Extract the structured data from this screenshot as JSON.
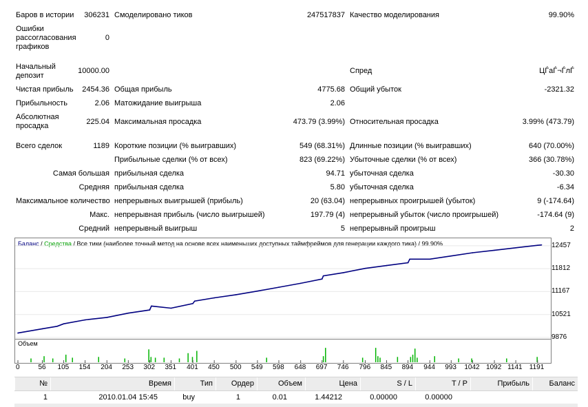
{
  "report": {
    "bars_label": "Баров в истории",
    "bars_value": "306231",
    "ticks_label": "Смоделировано тиков",
    "ticks_value": "247517837",
    "quality_label": "Качество моделирования",
    "quality_value": "99.90%",
    "errors_label": "Ошибки рассогласования графиков",
    "errors_value": "0",
    "deposit_label": "Начальный депозит",
    "deposit_value": "10000.00",
    "spread_label": "Спред",
    "spread_value": "ЦЃаЃ¬ЃлЃ",
    "net_label": "Чистая прибыль",
    "net_value": "2454.36",
    "gross_profit_label": "Общая прибыль",
    "gross_profit_value": "4775.68",
    "gross_loss_label": "Общий убыток",
    "gross_loss_value": "-2321.32",
    "pf_label": "Прибыльность",
    "pf_value": "2.06",
    "payoff_label": "Матожидание выигрыша",
    "payoff_value": "2.06",
    "abs_dd_label": "Абсолютная просадка",
    "abs_dd_value": "225.04",
    "max_dd_label": "Максимальная просадка",
    "max_dd_value": "473.79 (3.99%)",
    "rel_dd_label": "Относительная просадка",
    "rel_dd_value": "3.99% (473.79)",
    "total_label": "Всего сделок",
    "total_value": "1189",
    "short_label": "Короткие позиции (% выигравших)",
    "short_value": "549 (68.31%)",
    "long_label": "Длинные позиции (% выигравших)",
    "long_value": "640 (70.00%)",
    "profit_trades_label": "Прибыльные сделки (% от всех)",
    "profit_trades_value": "823 (69.22%)",
    "loss_trades_label": "Убыточные сделки (% от всех)",
    "loss_trades_value": "366 (30.78%)",
    "largest_label": "Самая большая",
    "largest_profit_label": "прибыльная сделка",
    "largest_profit_value": "94.71",
    "largest_loss_label": "убыточная сделка",
    "largest_loss_value": "-30.30",
    "average_label": "Средняя",
    "avg_profit_label": "прибыльная сделка",
    "avg_profit_value": "5.80",
    "avg_loss_label": "убыточная сделка",
    "avg_loss_value": "-6.34",
    "maxnum_label": "Максимальное количество",
    "maxnum_wins_label": "непрерывных выигрышей (прибыль)",
    "maxnum_wins_value": "20 (63.04)",
    "maxnum_losses_label": "непрерывных проигрышей (убыток)",
    "maxnum_losses_value": "9 (-174.64)",
    "maxamt_label": "Макс.",
    "maxamt_profit_label": "непрерывная прибыль (число выигрышей)",
    "maxamt_profit_value": "197.79 (4)",
    "maxamt_loss_label": "непрерывный убыток (число проигрышей)",
    "maxamt_loss_value": "-174.64 (9)",
    "avgcons_label": "Средний",
    "avgcons_wins_label": "непрерывный выигрыш",
    "avgcons_wins_value": "5",
    "avgcons_losses_label": "непрерывный проигрыш",
    "avgcons_losses_value": "2"
  },
  "chart": {
    "legend_balance": "Баланс",
    "legend_sep": " / ",
    "legend_equity": "Средства",
    "legend_rest": " / Все тики (наиболее точный метод на основе всех наименьших доступных таймфреймов для генерации каждого тика) / 99.90%",
    "volume_label": "Объем",
    "colors": {
      "balance": "#000080",
      "equity": "#00a000",
      "volume": "#00b400"
    }
  },
  "chart_data": {
    "type": "line",
    "xlabel": "",
    "ylabel": "",
    "y_ticks": [
      12457,
      11812,
      11167,
      10521,
      9876
    ],
    "x_ticks": [
      0,
      56,
      105,
      154,
      204,
      253,
      302,
      351,
      401,
      450,
      500,
      549,
      598,
      648,
      697,
      746,
      796,
      845,
      894,
      944,
      993,
      1042,
      1092,
      1141,
      1191
    ],
    "ylim": [
      9876,
      12590
    ],
    "xlim": [
      0,
      1215
    ],
    "series": [
      {
        "name": "Баланс",
        "x": [
          0,
          56,
          90,
          105,
          154,
          204,
          253,
          302,
          306,
          351,
          401,
          405,
          450,
          500,
          549,
          598,
          648,
          697,
          700,
          746,
          796,
          845,
          894,
          898,
          944,
          993,
          1042,
          1092,
          1141,
          1191,
          1200
        ],
        "values": [
          10000,
          10120,
          10190,
          10260,
          10370,
          10440,
          10560,
          10650,
          10760,
          10700,
          10830,
          10900,
          10990,
          11080,
          11180,
          11290,
          11400,
          11520,
          11610,
          11700,
          11820,
          11900,
          11980,
          12080,
          12080,
          12170,
          12260,
          12330,
          12400,
          12470,
          12480
        ]
      }
    ],
    "volume": {
      "name": "Объем",
      "x": [
        30,
        60,
        80,
        110,
        125,
        185,
        245,
        300,
        305,
        315,
        335,
        370,
        390,
        400,
        410,
        570,
        700,
        705,
        790,
        820,
        825,
        830,
        870,
        900,
        905,
        910,
        915,
        955,
        1010,
        1040,
        1120,
        1190
      ],
      "values": [
        0.25,
        0.4,
        0.25,
        0.5,
        0.3,
        0.35,
        0.25,
        0.85,
        0.35,
        0.3,
        0.3,
        0.25,
        0.6,
        0.35,
        0.75,
        0.3,
        0.4,
        0.95,
        0.3,
        0.95,
        0.4,
        0.3,
        0.35,
        0.35,
        0.5,
        0.9,
        0.3,
        0.4,
        0.25,
        0.25,
        0.25,
        0.35
      ]
    }
  },
  "table": {
    "headers": [
      "№",
      "Время",
      "Тип",
      "Ордер",
      "Объем",
      "Цена",
      "S / L",
      "T / P",
      "Прибыль",
      "Баланс"
    ],
    "rows": [
      [
        "1",
        "2010.01.04 15:45",
        "buy",
        "1",
        "0.01",
        "1.44212",
        "0.00000",
        "0.00000",
        "",
        ""
      ]
    ]
  }
}
